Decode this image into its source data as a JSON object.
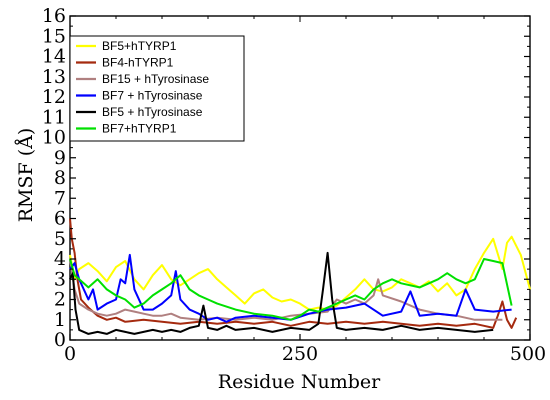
{
  "chart_data": {
    "type": "line",
    "title": "",
    "xlabel": "Residue Number",
    "ylabel": "RMSF (Å)",
    "xlim": [
      0,
      500
    ],
    "ylim": [
      0,
      16
    ],
    "x_ticks": [
      0,
      250,
      500
    ],
    "y_ticks": [
      0,
      1,
      2,
      3,
      4,
      5,
      6,
      7,
      8,
      9,
      10,
      11,
      12,
      13,
      14,
      15,
      16
    ],
    "x_tick_labels": [
      "0",
      "250",
      "500"
    ],
    "y_tick_labels": [
      "0",
      "1",
      "2",
      "3",
      "4",
      "5",
      "6",
      "7",
      "8",
      "9",
      "10",
      "11",
      "12",
      "13",
      "14",
      "15",
      "16"
    ],
    "grid": false,
    "legend_position": "top-left",
    "series": [
      {
        "name": "BF5+hTYRP1",
        "color": "#ffff00",
        "x": [
          0,
          5,
          10,
          20,
          30,
          40,
          50,
          60,
          70,
          80,
          90,
          100,
          110,
          120,
          130,
          140,
          150,
          160,
          170,
          180,
          190,
          200,
          210,
          220,
          230,
          240,
          250,
          260,
          270,
          280,
          290,
          300,
          310,
          320,
          330,
          340,
          350,
          360,
          370,
          380,
          390,
          400,
          410,
          420,
          430,
          440,
          450,
          460,
          470,
          475,
          480,
          490,
          500
        ],
        "values": [
          4.2,
          3.0,
          3.5,
          3.8,
          3.4,
          2.9,
          3.6,
          3.9,
          3.0,
          2.5,
          3.2,
          3.7,
          3.0,
          2.7,
          3.0,
          3.3,
          3.5,
          3.0,
          2.6,
          2.2,
          1.8,
          2.3,
          2.5,
          2.1,
          1.9,
          2.0,
          1.8,
          1.5,
          1.6,
          1.5,
          1.7,
          2.1,
          2.5,
          3.0,
          2.5,
          2.4,
          2.6,
          3.0,
          2.8,
          2.6,
          2.9,
          2.4,
          2.8,
          2.2,
          2.5,
          3.5,
          4.3,
          5.0,
          3.5,
          4.8,
          5.1,
          4.2,
          2.5
        ]
      },
      {
        "name": "BF4-hTYRP1",
        "color": "#a52a0f",
        "x": [
          0,
          2,
          5,
          8,
          12,
          20,
          30,
          40,
          50,
          60,
          80,
          100,
          120,
          140,
          160,
          180,
          200,
          220,
          240,
          260,
          280,
          300,
          320,
          340,
          360,
          380,
          400,
          420,
          440,
          450,
          460,
          465,
          470,
          475,
          480,
          485
        ],
        "values": [
          6.0,
          5.0,
          4.3,
          3.0,
          2.0,
          1.6,
          1.2,
          1.0,
          1.1,
          0.9,
          1.0,
          0.9,
          0.8,
          0.9,
          0.8,
          0.9,
          0.8,
          0.9,
          0.7,
          0.9,
          0.8,
          0.9,
          0.8,
          0.9,
          0.8,
          0.7,
          0.8,
          0.7,
          0.8,
          0.7,
          0.6,
          1.2,
          1.9,
          1.0,
          0.6,
          1.1
        ]
      },
      {
        "name": "BF15 + hTyrosinase",
        "color": "#b08080",
        "x": [
          0,
          5,
          10,
          20,
          30,
          40,
          50,
          60,
          70,
          80,
          90,
          100,
          110,
          120,
          140,
          160,
          180,
          200,
          220,
          240,
          260,
          280,
          290,
          300,
          310,
          320,
          330,
          335,
          340,
          360,
          380,
          400,
          420,
          440,
          460,
          470
        ],
        "values": [
          4.0,
          2.5,
          1.8,
          1.5,
          1.3,
          1.2,
          1.3,
          1.5,
          1.4,
          1.3,
          1.2,
          1.2,
          1.3,
          1.1,
          1.0,
          1.1,
          1.0,
          1.1,
          1.0,
          1.2,
          1.3,
          1.4,
          2.0,
          1.8,
          2.0,
          1.8,
          2.2,
          3.0,
          2.2,
          1.9,
          1.5,
          1.3,
          1.2,
          1.0,
          1.0,
          1.0
        ]
      },
      {
        "name": "BF7 + hTyrosinase",
        "color": "#0000ff",
        "x": [
          0,
          5,
          10,
          20,
          25,
          30,
          40,
          50,
          55,
          60,
          65,
          70,
          80,
          90,
          100,
          110,
          115,
          120,
          130,
          140,
          150,
          160,
          170,
          180,
          200,
          220,
          240,
          260,
          280,
          300,
          320,
          340,
          360,
          370,
          380,
          400,
          420,
          430,
          440,
          460,
          480
        ],
        "values": [
          3.5,
          3.8,
          3.0,
          2.0,
          2.5,
          1.5,
          1.8,
          2.0,
          3.0,
          2.8,
          4.2,
          2.5,
          1.5,
          1.5,
          1.8,
          2.2,
          3.4,
          2.0,
          1.5,
          1.3,
          1.0,
          1.1,
          0.9,
          1.1,
          1.2,
          1.1,
          1.0,
          1.3,
          1.5,
          1.6,
          1.8,
          1.2,
          1.4,
          2.4,
          1.2,
          1.3,
          1.2,
          2.5,
          1.5,
          1.4,
          1.5
        ]
      },
      {
        "name": "BF5 + hTyrosinase",
        "color": "#000000",
        "x": [
          0,
          3,
          6,
          10,
          20,
          30,
          40,
          50,
          60,
          70,
          80,
          90,
          100,
          110,
          120,
          130,
          140,
          145,
          150,
          160,
          170,
          180,
          200,
          220,
          240,
          260,
          270,
          275,
          280,
          285,
          290,
          300,
          320,
          340,
          360,
          380,
          400,
          420,
          440,
          460
        ],
        "values": [
          3.0,
          3.3,
          1.5,
          0.5,
          0.3,
          0.4,
          0.3,
          0.5,
          0.4,
          0.3,
          0.4,
          0.5,
          0.4,
          0.5,
          0.4,
          0.6,
          0.7,
          1.7,
          0.6,
          0.5,
          0.7,
          0.5,
          0.6,
          0.4,
          0.6,
          0.5,
          0.8,
          2.5,
          4.3,
          2.0,
          0.6,
          0.5,
          0.6,
          0.5,
          0.7,
          0.5,
          0.6,
          0.5,
          0.4,
          0.5
        ]
      },
      {
        "name": "BF7+hTYRP1",
        "color": "#00e000",
        "x": [
          0,
          5,
          10,
          20,
          30,
          40,
          50,
          60,
          70,
          80,
          90,
          100,
          110,
          120,
          130,
          140,
          150,
          160,
          180,
          200,
          220,
          240,
          250,
          260,
          270,
          280,
          290,
          300,
          310,
          320,
          330,
          340,
          350,
          360,
          380,
          400,
          410,
          420,
          430,
          440,
          450,
          460,
          470,
          480
        ],
        "values": [
          4.0,
          3.2,
          3.0,
          2.6,
          3.0,
          2.5,
          2.2,
          2.0,
          1.6,
          1.8,
          2.2,
          2.5,
          2.8,
          3.2,
          2.5,
          2.2,
          2.0,
          1.8,
          1.5,
          1.3,
          1.2,
          1.0,
          1.2,
          1.5,
          1.4,
          1.6,
          1.8,
          2.0,
          2.2,
          2.0,
          2.5,
          2.8,
          3.0,
          2.8,
          2.6,
          3.0,
          3.3,
          3.0,
          2.8,
          3.0,
          4.0,
          3.9,
          3.8,
          1.7
        ]
      }
    ]
  }
}
